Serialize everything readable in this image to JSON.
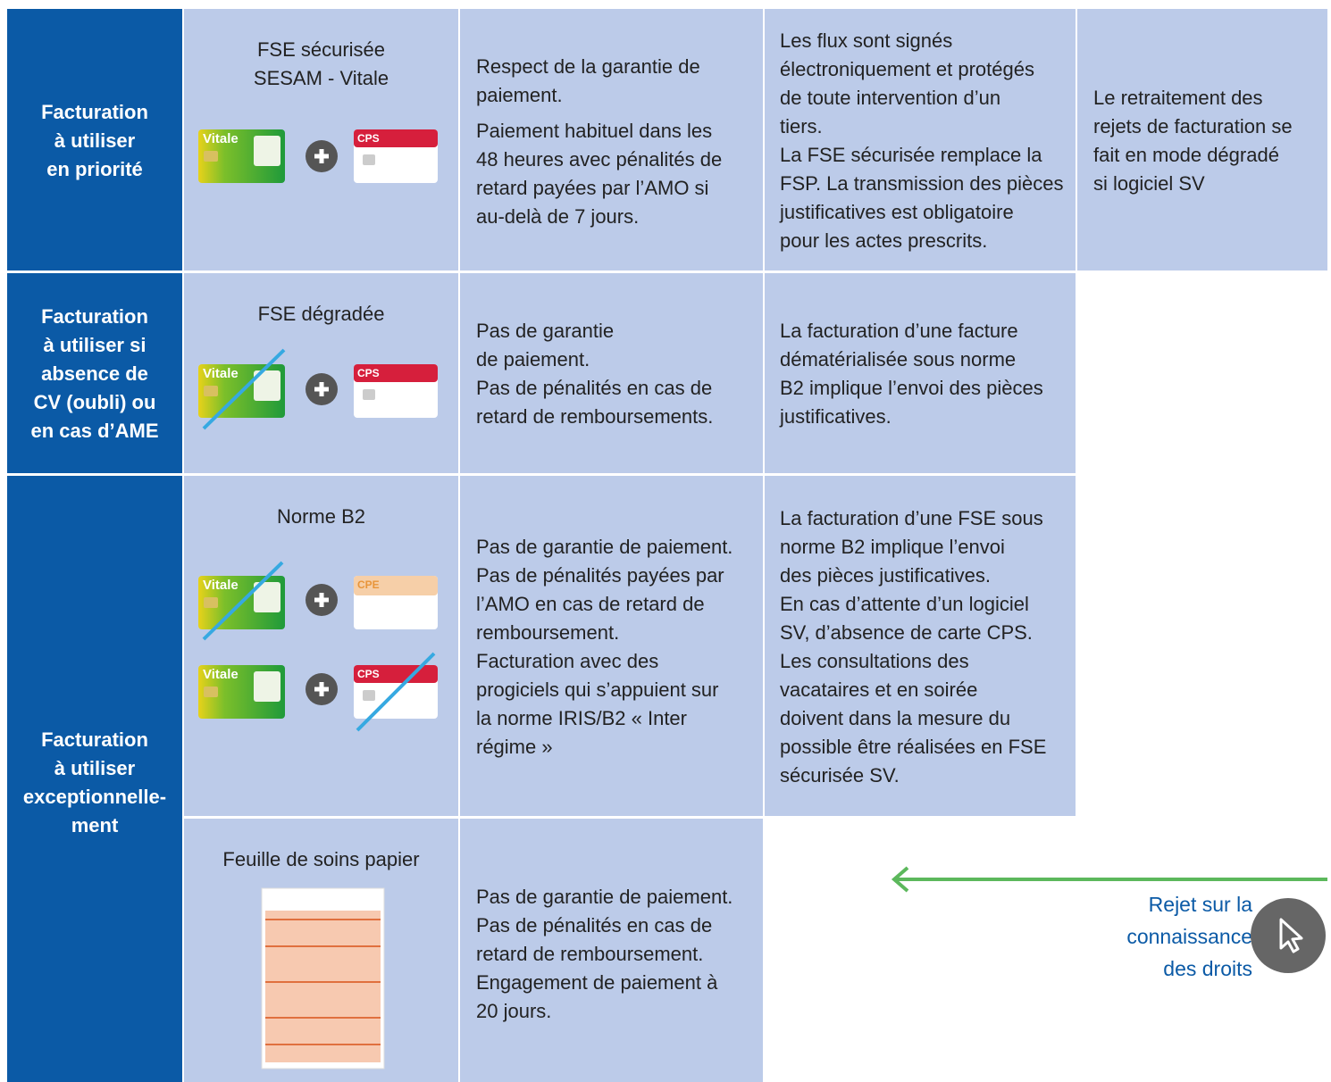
{
  "table": {
    "rows": [
      {
        "label": [
          "Facturation",
          "à utiliser",
          "en priorité"
        ],
        "mode": [
          "FSE sécurisée",
          "SESAM - Vitale"
        ],
        "guarantee": [
          [
            "Respect de la garantie de",
            "paiement."
          ],
          [
            "Paiement habituel dans les",
            "48 heures avec pénalités de",
            "retard payées par l’AMO si",
            "au-delà de 7 jours."
          ]
        ],
        "notes": [
          [
            "Les flux sont signés",
            "électroniquement et protégés",
            "de toute intervention d’un",
            "tiers.",
            "La FSE sécurisée remplace la",
            "FSP. La transmission des pièces",
            "justificatives est obligatoire",
            "pour les actes prescrits."
          ]
        ],
        "rejects": [
          [
            "Le retraitement des",
            "rejets de facturation se",
            "fait en mode dégradé",
            "si logiciel SV"
          ]
        ]
      },
      {
        "label": [
          "Facturation",
          "à utiliser si",
          "absence de",
          "CV (oubli) ou",
          "en cas d’AME"
        ],
        "mode": [
          "FSE dégradée"
        ],
        "guarantee": [
          [
            "Pas de garantie",
            "de paiement.",
            "Pas de pénalités en cas de",
            "retard de remboursements."
          ]
        ],
        "notes": [
          [
            "La facturation d’une facture",
            "dématérialisée sous norme",
            "B2 implique l’envoi des pièces",
            "justificatives."
          ]
        ]
      },
      {
        "label": [
          "Facturation",
          "à utiliser",
          "exceptionnelle-",
          "ment"
        ],
        "mode": [
          "Norme B2"
        ],
        "guarantee": [
          [
            "Pas de garantie de paiement.",
            "Pas de pénalités payées par",
            "l’AMO en cas de retard de",
            "remboursement.",
            "Facturation avec des",
            "progiciels qui s’appuient sur",
            "la norme IRIS/B2 « Inter",
            "régime »"
          ]
        ],
        "notes": [
          [
            "La facturation d’une FSE sous",
            "norme B2 implique l’envoi",
            "des pièces justificatives.",
            "En cas d’attente d’un logiciel",
            "SV, d’absence de carte CPS.",
            "Les consultations des",
            "vacataires et en soirée",
            "doivent dans la mesure du",
            "possible être réalisées en FSE",
            "sécurisée SV."
          ]
        ]
      },
      {
        "mode": [
          "Feuille de soins papier"
        ],
        "guarantee": [
          [
            "Pas de garantie de paiement.",
            "Pas de pénalités en cas de",
            "retard de remboursement.",
            "Engagement de paiement à",
            "20 jours."
          ]
        ]
      }
    ]
  },
  "cards": {
    "vitale": "Vitale",
    "cps": "CPS",
    "cpe": "CPE"
  },
  "callout": [
    "Rejet sur la",
    "connaissance",
    "des droits"
  ]
}
